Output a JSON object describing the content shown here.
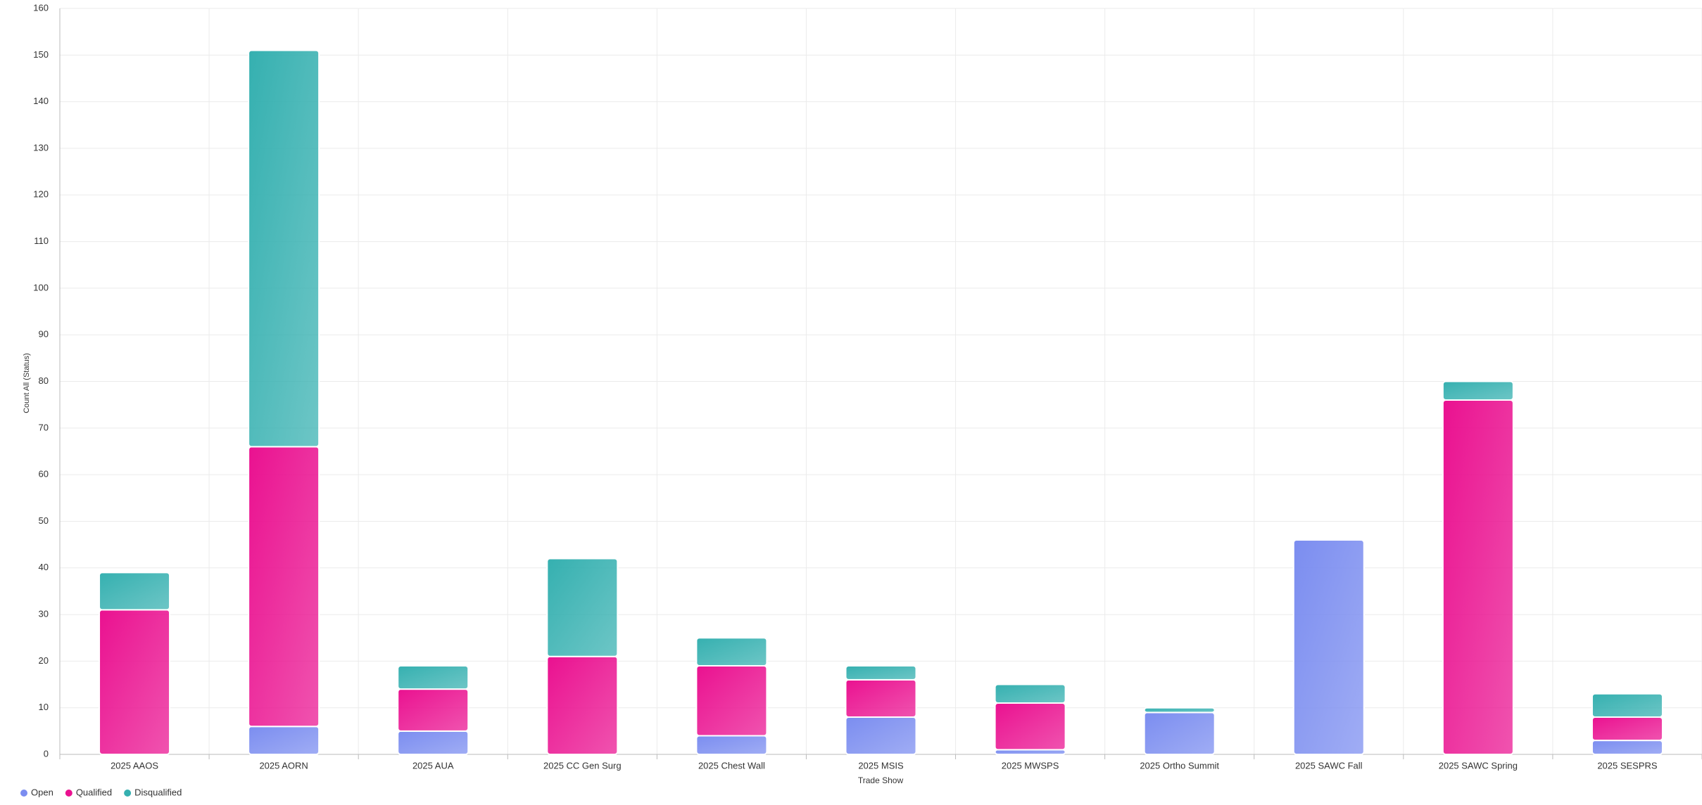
{
  "chart_data": {
    "type": "stacked_bar",
    "x_label": "Trade Show",
    "y_label": "Count All (Status)",
    "categories": [
      "2025 AAOS",
      "2025 AORN",
      "2025 AUA",
      "2025 CC Gen Surg",
      "2025 Chest Wall",
      "2025 MSIS",
      "2025 MWSPS",
      "2025 Ortho Summit",
      "2025 SAWC Fall",
      "2025 SAWC Spring",
      "2025 SESPRS"
    ],
    "series": [
      {
        "name": "Open",
        "color": "#7b8df0",
        "values": [
          0,
          6,
          5,
          0,
          4,
          8,
          1,
          9,
          46,
          0,
          3
        ]
      },
      {
        "name": "Qualified",
        "color": "#ea1190",
        "values": [
          31,
          60,
          9,
          21,
          15,
          8,
          10,
          0,
          0,
          76,
          5
        ]
      },
      {
        "name": "Disqualified",
        "color": "#35b0b0",
        "values": [
          8,
          85,
          5,
          21,
          6,
          3,
          4,
          1,
          0,
          4,
          5
        ]
      }
    ],
    "ylim": [
      0,
      160
    ],
    "yticks": [
      0,
      10,
      20,
      30,
      40,
      50,
      60,
      70,
      80,
      90,
      100,
      110,
      120,
      130,
      140,
      150,
      160
    ],
    "grid": true,
    "legend": "bottom-left"
  }
}
